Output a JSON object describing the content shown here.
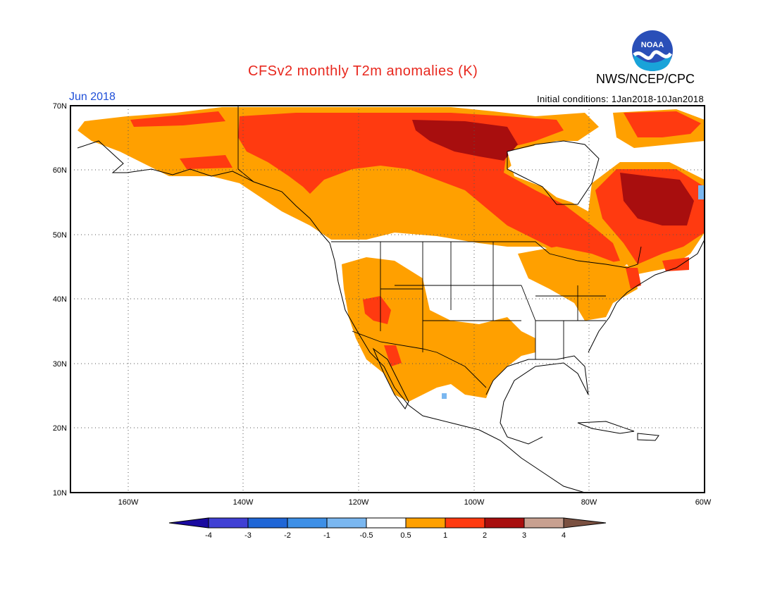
{
  "title": "CFSv2 monthly T2m anomalies (K)",
  "agency": "NWS/NCEP/CPC",
  "logo_text": "NOAA",
  "valid_month": "Jun 2018",
  "initial_conditions": "Initial conditions: 1Jan2018-10Jan2018",
  "map": {
    "lon_range": [
      -170,
      -60
    ],
    "lat_range": [
      10,
      70
    ],
    "lat_labels": [
      "70N",
      "60N",
      "50N",
      "40N",
      "30N",
      "20N",
      "10N"
    ],
    "lon_labels": [
      "160W",
      "140W",
      "120W",
      "100W",
      "80W",
      "60W"
    ],
    "grid": "dotted"
  },
  "legend": {
    "labels": [
      "-4",
      "-3",
      "-2",
      "-1",
      "-0.5",
      "0.5",
      "1",
      "2",
      "3",
      "4"
    ],
    "colors": [
      "#1a0aa0",
      "#4040d4",
      "#1f66d6",
      "#3d8fe6",
      "#7ab7f0",
      "#ffffff",
      "#ffa000",
      "#ff3a10",
      "#a80e0e",
      "#c8a090",
      "#7a5040"
    ]
  },
  "anomaly_colors": {
    "0.5_to_1": "#ffa000",
    "1_to_2": "#ff3a10",
    "2_to_3": "#a80e0e",
    "minus_1_to_minus_0.5": "#7ab7f0"
  }
}
